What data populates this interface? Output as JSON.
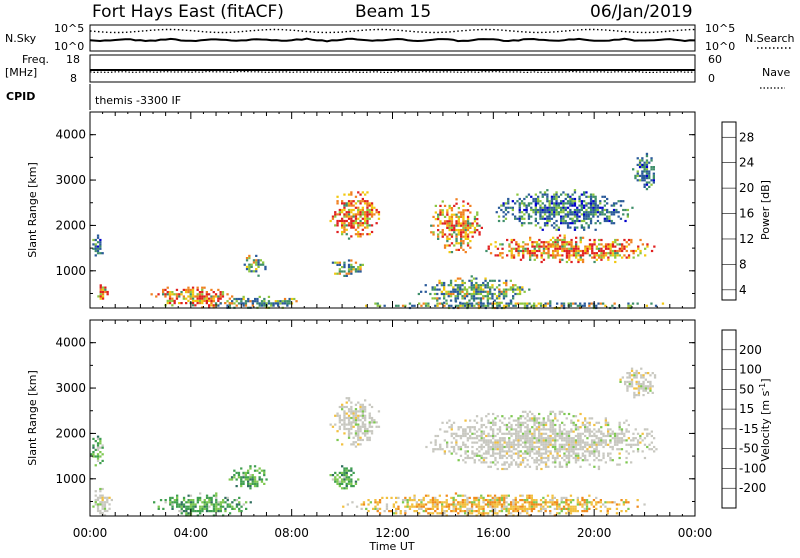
{
  "header": {
    "station": "Fort Hays East (fitACF)",
    "beam": "Beam 15",
    "date": "06/Jan/2019"
  },
  "panels": {
    "nsky_label": "N.Sky",
    "nsearch_label": "N.Search",
    "nsky_ticks": [
      "10^5",
      "10^0"
    ],
    "nsearch_ticks": [
      "10^5",
      "10^0"
    ],
    "freq_label": "Freq.",
    "freq_unit": "[MHz]",
    "freq_ticks": [
      "18",
      "8"
    ],
    "nave_label": "Nave",
    "nave_ticks": [
      "60",
      "0"
    ],
    "cpid_label": "CPID",
    "cpid_value": "themis -3300 IF"
  },
  "chart_data": [
    {
      "type": "heatmap",
      "name": "power",
      "ylabel": "Slant Range [km]",
      "xlabel": "",
      "ylim": [
        180,
        4500
      ],
      "yticks": [
        "4000",
        "3000",
        "2000",
        "1000"
      ],
      "colorbar_label": "Power [dB]",
      "colorbar_ticks": [
        "28",
        "24",
        "20",
        "16",
        "12",
        "8",
        "4"
      ],
      "colorbar_colors": [
        "#0000cc",
        "#2a5a9a",
        "#3f8f6a",
        "#8cc63f",
        "#f2c80f",
        "#f08020",
        "#e02020"
      ],
      "regions": [
        {
          "t": [
            0.2,
            0.8
          ],
          "r": [
            350,
            750
          ],
          "level": "high"
        },
        {
          "t": [
            0.0,
            0.5
          ],
          "r": [
            1300,
            1800
          ],
          "level": "low"
        },
        {
          "t": [
            2.4,
            5.8
          ],
          "r": [
            200,
            700
          ],
          "level": "high"
        },
        {
          "t": [
            4.5,
            8.5
          ],
          "r": [
            180,
            450
          ],
          "level": "mid"
        },
        {
          "t": [
            6.0,
            7.0
          ],
          "r": [
            900,
            1400
          ],
          "level": "mid"
        },
        {
          "t": [
            9.5,
            11.5
          ],
          "r": [
            1700,
            2800
          ],
          "level": "high"
        },
        {
          "t": [
            9.5,
            10.8
          ],
          "r": [
            900,
            1300
          ],
          "level": "mid"
        },
        {
          "t": [
            13.4,
            15.5
          ],
          "r": [
            1400,
            2600
          ],
          "level": "high"
        },
        {
          "t": [
            15.5,
            22.5
          ],
          "r": [
            1200,
            1800
          ],
          "level": "high"
        },
        {
          "t": [
            13.0,
            17.5
          ],
          "r": [
            250,
            900
          ],
          "level": "mid"
        },
        {
          "t": [
            16.0,
            21.5
          ],
          "r": [
            1900,
            2800
          ],
          "level": "low"
        },
        {
          "t": [
            21.5,
            22.5
          ],
          "r": [
            2800,
            3600
          ],
          "level": "low"
        },
        {
          "t": [
            10.0,
            23.0
          ],
          "r": [
            180,
            350
          ],
          "level": "mid"
        }
      ]
    },
    {
      "type": "heatmap",
      "name": "velocity",
      "ylabel": "Slant Range [km]",
      "xlabel": "Time UT",
      "xticks": [
        "00:00",
        "04:00",
        "08:00",
        "12:00",
        "16:00",
        "20:00",
        "00:00"
      ],
      "ylim": [
        180,
        4500
      ],
      "yticks": [
        "4000",
        "3000",
        "2000",
        "1000"
      ],
      "colorbar_label": "Velocity [m s^-1]",
      "colorbar_ticks": [
        "200",
        "100",
        "50",
        "15",
        "-15",
        "-50",
        "-100",
        "-200"
      ],
      "colorbar_colors": [
        "#1a3aa8",
        "#2f6e5e",
        "#3f9f4f",
        "#7ec850",
        "#c8c8c0",
        "#f2c040",
        "#f08a1c",
        "#e8551c",
        "#e01818"
      ],
      "regions": [
        {
          "t": [
            0.0,
            0.9
          ],
          "r": [
            200,
            800
          ],
          "level": "ground"
        },
        {
          "t": [
            0.0,
            0.5
          ],
          "r": [
            1300,
            2000
          ],
          "level": "green"
        },
        {
          "t": [
            2.5,
            6.5
          ],
          "r": [
            200,
            700
          ],
          "level": "green"
        },
        {
          "t": [
            5.5,
            7.0
          ],
          "r": [
            800,
            1300
          ],
          "level": "green"
        },
        {
          "t": [
            9.5,
            11.5
          ],
          "r": [
            1700,
            2800
          ],
          "level": "ground"
        },
        {
          "t": [
            9.5,
            10.6
          ],
          "r": [
            800,
            1300
          ],
          "level": "green"
        },
        {
          "t": [
            13.3,
            22.5
          ],
          "r": [
            1200,
            2500
          ],
          "level": "ground"
        },
        {
          "t": [
            21.0,
            22.5
          ],
          "r": [
            2800,
            3500
          ],
          "level": "ground"
        },
        {
          "t": [
            10.0,
            22.0
          ],
          "r": [
            180,
            700
          ],
          "level": "orange"
        }
      ]
    }
  ]
}
